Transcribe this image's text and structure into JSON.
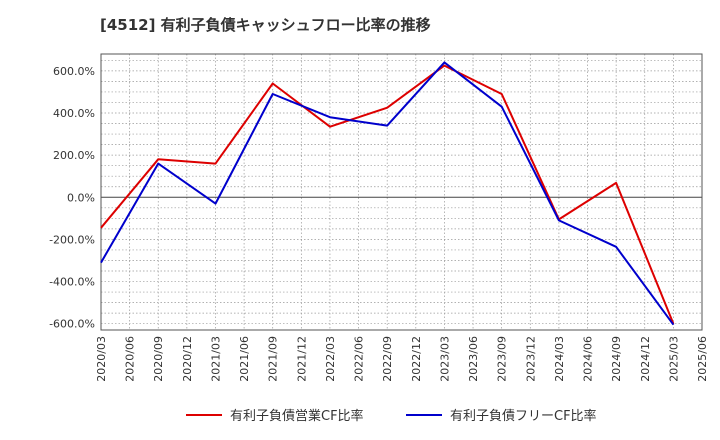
{
  "chart_data": {
    "type": "line",
    "title": "[4512]  有利子負債キャッシュフロー比率の推移",
    "xlabel": "",
    "ylabel": "",
    "x": [
      "2020/03",
      "2020/06",
      "2020/09",
      "2020/12",
      "2021/03",
      "2021/06",
      "2021/09",
      "2021/12",
      "2022/03",
      "2022/06",
      "2022/09",
      "2022/12",
      "2023/03",
      "2023/06",
      "2023/09",
      "2023/12",
      "2024/03",
      "2024/06",
      "2024/09",
      "2024/12",
      "2025/03",
      "2025/06"
    ],
    "ylim": [
      -630,
      680
    ],
    "yticks": [
      600,
      400,
      200,
      0,
      -200,
      -400,
      -600
    ],
    "ytick_labels": [
      "600.0%",
      "400.0%",
      "200.0%",
      "0.0%",
      "-200.0%",
      "-400.0%",
      "-600.0%"
    ],
    "grid": true,
    "legend_position": "bottom",
    "series": [
      {
        "name": "有利子負債営業CF比率",
        "color": "#dd0000",
        "values": [
          -145,
          null,
          180,
          null,
          160,
          null,
          540,
          null,
          335,
          null,
          425,
          null,
          625,
          null,
          490,
          null,
          -105,
          null,
          68,
          null,
          -600,
          null
        ]
      },
      {
        "name": "有利子負債フリーCF比率",
        "color": "#0000cc",
        "values": [
          -310,
          null,
          160,
          null,
          -30,
          null,
          490,
          null,
          380,
          null,
          340,
          null,
          640,
          null,
          430,
          null,
          -110,
          null,
          -235,
          null,
          -605,
          null
        ]
      }
    ]
  }
}
